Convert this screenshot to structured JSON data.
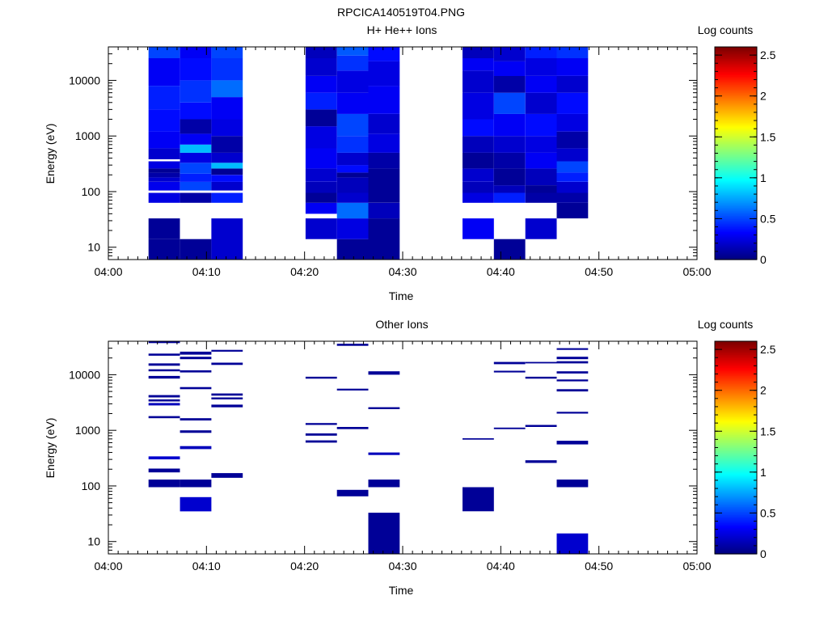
{
  "page": {
    "title": "RPCICA140519T04.PNG"
  },
  "colors": {
    "background": "#ffffff",
    "axis": "#000000",
    "colormap": [
      "#000080",
      "#0000ff",
      "#0080ff",
      "#00ffff",
      "#80ff80",
      "#ffff00",
      "#ff8000",
      "#ff0000",
      "#800000"
    ]
  },
  "chart_data": [
    {
      "type": "heatmap",
      "title": "H+ He++ Ions",
      "xlabel": "Time",
      "ylabel": "Energy (eV)",
      "yscale": "log",
      "xticks": [
        "04:00",
        "04:10",
        "04:20",
        "04:30",
        "04:40",
        "04:50",
        "05:00"
      ],
      "yticks": [
        "10",
        "100",
        "1000",
        "10000"
      ],
      "xlim_minutes": [
        0,
        60
      ],
      "ylim": [
        6,
        40000
      ],
      "colorbar": {
        "label": "Log counts",
        "range": [
          0,
          2.6
        ],
        "ticks": [
          "0",
          "0.5",
          "1",
          "1.5",
          "2",
          "2.5"
        ]
      },
      "columns": [
        {
          "t0": 4.1,
          "t1": 7.3,
          "cells": [
            [
              6,
              14,
              0.06
            ],
            [
              14,
              33,
              0.06
            ],
            [
              63,
              95,
              0.25
            ],
            [
              105,
              150,
              0.28
            ],
            [
              150,
              180,
              0.2
            ],
            [
              180,
              220,
              0.1
            ],
            [
              220,
              260,
              0.05
            ],
            [
              260,
              350,
              0.25
            ],
            [
              380,
              600,
              0.2
            ],
            [
              600,
              1200,
              0.3
            ],
            [
              1200,
              3000,
              0.35
            ],
            [
              3000,
              8000,
              0.4
            ],
            [
              8000,
              25000,
              0.3
            ],
            [
              25000,
              40000,
              0.5
            ]
          ]
        },
        {
          "t0": 7.3,
          "t1": 10.5,
          "cells": [
            [
              6,
              14,
              0.06
            ],
            [
              63,
              95,
              0.1
            ],
            [
              105,
              150,
              0.5
            ],
            [
              150,
              210,
              0.4
            ],
            [
              210,
              330,
              0.5
            ],
            [
              330,
              500,
              0.25
            ],
            [
              500,
              700,
              0.8
            ],
            [
              700,
              1100,
              0.3
            ],
            [
              1100,
              2000,
              0.1
            ],
            [
              2000,
              4000,
              0.35
            ],
            [
              4000,
              10000,
              0.45
            ],
            [
              10000,
              25000,
              0.35
            ],
            [
              25000,
              40000,
              0.3
            ]
          ]
        },
        {
          "t0": 10.5,
          "t1": 13.7,
          "cells": [
            [
              6,
              33,
              0.2
            ],
            [
              63,
              95,
              0.4
            ],
            [
              105,
              150,
              0.2
            ],
            [
              150,
              200,
              0.35
            ],
            [
              200,
              260,
              0.05
            ],
            [
              260,
              330,
              0.8
            ],
            [
              330,
              500,
              0.2
            ],
            [
              500,
              1000,
              0.1
            ],
            [
              1000,
              2000,
              0.25
            ],
            [
              2000,
              5000,
              0.3
            ],
            [
              5000,
              10000,
              0.6
            ],
            [
              10000,
              25000,
              0.45
            ],
            [
              25000,
              40000,
              0.5
            ]
          ]
        },
        {
          "t0": 20.1,
          "t1": 23.3,
          "cells": [
            [
              14,
              33,
              0.2
            ],
            [
              40,
              63,
              0.3
            ],
            [
              63,
              95,
              0.06
            ],
            [
              95,
              150,
              0.15
            ],
            [
              150,
              260,
              0.2
            ],
            [
              260,
              600,
              0.3
            ],
            [
              600,
              1500,
              0.25
            ],
            [
              1500,
              3000,
              0.06
            ],
            [
              3000,
              6000,
              0.4
            ],
            [
              6000,
              12000,
              0.3
            ],
            [
              12000,
              25000,
              0.2
            ],
            [
              25000,
              40000,
              0.15
            ]
          ]
        },
        {
          "t0": 23.3,
          "t1": 26.5,
          "cells": [
            [
              6,
              14,
              0.06
            ],
            [
              14,
              33,
              0.25
            ],
            [
              33,
              63,
              0.6
            ],
            [
              63,
              95,
              0.2
            ],
            [
              95,
              180,
              0.15
            ],
            [
              180,
              220,
              0.05
            ],
            [
              220,
              300,
              0.35
            ],
            [
              300,
              500,
              0.2
            ],
            [
              500,
              1000,
              0.45
            ],
            [
              1000,
              2500,
              0.5
            ],
            [
              2500,
              6000,
              0.3
            ],
            [
              6000,
              15000,
              0.25
            ],
            [
              15000,
              28000,
              0.45
            ],
            [
              28000,
              40000,
              0.55
            ]
          ]
        },
        {
          "t0": 26.5,
          "t1": 29.7,
          "cells": [
            [
              6,
              33,
              0.06
            ],
            [
              33,
              63,
              0.15
            ],
            [
              63,
              260,
              0.06
            ],
            [
              260,
              500,
              0.1
            ],
            [
              500,
              1100,
              0.25
            ],
            [
              1100,
              2500,
              0.2
            ],
            [
              2500,
              8000,
              0.3
            ],
            [
              8000,
              22000,
              0.25
            ],
            [
              22000,
              40000,
              0.35
            ]
          ]
        },
        {
          "t0": 36.1,
          "t1": 39.3,
          "cells": [
            [
              14,
              33,
              0.3
            ],
            [
              63,
              95,
              0.25
            ],
            [
              95,
              150,
              0.15
            ],
            [
              150,
              260,
              0.2
            ],
            [
              260,
              500,
              0.06
            ],
            [
              500,
              1000,
              0.15
            ],
            [
              1000,
              2000,
              0.35
            ],
            [
              2000,
              6000,
              0.25
            ],
            [
              6000,
              15000,
              0.2
            ],
            [
              15000,
              25000,
              0.3
            ],
            [
              25000,
              40000,
              0.15
            ]
          ]
        },
        {
          "t0": 39.3,
          "t1": 42.5,
          "cells": [
            [
              6,
              14,
              0.06
            ],
            [
              63,
              95,
              0.4
            ],
            [
              95,
              130,
              0.15
            ],
            [
              130,
              260,
              0.06
            ],
            [
              260,
              500,
              0.1
            ],
            [
              500,
              1000,
              0.2
            ],
            [
              1000,
              2500,
              0.3
            ],
            [
              2500,
              6000,
              0.5
            ],
            [
              6000,
              12000,
              0.1
            ],
            [
              12000,
              22000,
              0.3
            ],
            [
              22000,
              40000,
              0.2
            ]
          ]
        },
        {
          "t0": 42.5,
          "t1": 45.7,
          "cells": [
            [
              14,
              33,
              0.2
            ],
            [
              63,
              95,
              0.1
            ],
            [
              95,
              130,
              0.06
            ],
            [
              130,
              260,
              0.15
            ],
            [
              260,
              500,
              0.3
            ],
            [
              500,
              1000,
              0.25
            ],
            [
              1000,
              2500,
              0.35
            ],
            [
              2500,
              6000,
              0.2
            ],
            [
              6000,
              12000,
              0.3
            ],
            [
              12000,
              25000,
              0.25
            ],
            [
              25000,
              40000,
              0.4
            ]
          ]
        },
        {
          "t0": 45.7,
          "t1": 48.9,
          "cells": [
            [
              33,
              63,
              0.06
            ],
            [
              63,
              95,
              0.1
            ],
            [
              95,
              150,
              0.2
            ],
            [
              150,
              220,
              0.4
            ],
            [
              220,
              350,
              0.5
            ],
            [
              350,
              600,
              0.2
            ],
            [
              600,
              1200,
              0.1
            ],
            [
              1200,
              2500,
              0.25
            ],
            [
              2500,
              6000,
              0.35
            ],
            [
              6000,
              12000,
              0.2
            ],
            [
              12000,
              25000,
              0.3
            ],
            [
              25000,
              40000,
              0.45
            ]
          ]
        }
      ]
    },
    {
      "type": "heatmap",
      "title": "Other Ions",
      "xlabel": "Time",
      "ylabel": "Energy (eV)",
      "yscale": "log",
      "xticks": [
        "04:00",
        "04:10",
        "04:20",
        "04:30",
        "04:40",
        "04:50",
        "05:00"
      ],
      "yticks": [
        "10",
        "100",
        "1000",
        "10000"
      ],
      "xlim_minutes": [
        0,
        60
      ],
      "ylim": [
        6,
        40000
      ],
      "colorbar": {
        "label": "Log counts",
        "range": [
          0,
          2.6
        ],
        "ticks": [
          "0",
          "0.5",
          "1",
          "1.5",
          "2",
          "2.5"
        ]
      },
      "columns": [
        {
          "t0": 4.1,
          "t1": 7.3,
          "cells": [
            [
              95,
              130,
              0.06
            ],
            [
              175,
              205,
              0.06
            ],
            [
              300,
              340,
              0.2
            ],
            [
              1650,
              1800,
              0.06
            ],
            [
              2800,
              3100,
              0.15
            ],
            [
              3300,
              3600,
              0.06
            ],
            [
              3900,
              4300,
              0.06
            ],
            [
              8500,
              9500,
              0.06
            ],
            [
              11500,
              12500,
              0.06
            ],
            [
              14500,
              16000,
              0.06
            ],
            [
              22000,
              24000,
              0.06
            ],
            [
              37000,
              40000,
              0.06
            ]
          ]
        },
        {
          "t0": 7.3,
          "t1": 10.5,
          "cells": [
            [
              35,
              63,
              0.2
            ],
            [
              95,
              130,
              0.06
            ],
            [
              460,
              520,
              0.15
            ],
            [
              900,
              1000,
              0.06
            ],
            [
              1500,
              1650,
              0.06
            ],
            [
              5500,
              6000,
              0.06
            ],
            [
              11000,
              12000,
              0.06
            ],
            [
              19000,
              21000,
              0.06
            ],
            [
              23000,
              26000,
              0.06
            ]
          ]
        },
        {
          "t0": 10.5,
          "t1": 13.7,
          "cells": [
            [
              140,
              170,
              0.06
            ],
            [
              2600,
              2900,
              0.06
            ],
            [
              3600,
              3900,
              0.06
            ],
            [
              4200,
              4600,
              0.06
            ],
            [
              15000,
              16500,
              0.06
            ],
            [
              26000,
              28000,
              0.06
            ]
          ]
        },
        {
          "t0": 20.1,
          "t1": 23.3,
          "cells": [
            [
              600,
              660,
              0.06
            ],
            [
              800,
              880,
              0.06
            ],
            [
              1250,
              1350,
              0.06
            ],
            [
              8500,
              9200,
              0.06
            ]
          ]
        },
        {
          "t0": 23.3,
          "t1": 26.5,
          "cells": [
            [
              65,
              85,
              0.06
            ],
            [
              1050,
              1150,
              0.06
            ],
            [
              5200,
              5600,
              0.06
            ],
            [
              33000,
              36000,
              0.06
            ]
          ]
        },
        {
          "t0": 26.5,
          "t1": 29.7,
          "cells": [
            [
              6,
              33,
              0.06
            ],
            [
              95,
              130,
              0.06
            ],
            [
              360,
              400,
              0.15
            ],
            [
              2400,
              2600,
              0.06
            ],
            [
              10000,
              11500,
              0.06
            ]
          ]
        },
        {
          "t0": 36.1,
          "t1": 39.3,
          "cells": [
            [
              35,
              95,
              0.06
            ],
            [
              680,
              720,
              0.06
            ]
          ]
        },
        {
          "t0": 39.3,
          "t1": 42.5,
          "cells": [
            [
              1050,
              1120,
              0.06
            ],
            [
              11000,
              11800,
              0.06
            ],
            [
              15500,
              17000,
              0.06
            ]
          ]
        },
        {
          "t0": 42.5,
          "t1": 45.7,
          "cells": [
            [
              260,
              290,
              0.06
            ],
            [
              1150,
              1250,
              0.06
            ],
            [
              8500,
              9200,
              0.06
            ],
            [
              16000,
              17000,
              0.06
            ]
          ]
        },
        {
          "t0": 45.7,
          "t1": 48.9,
          "cells": [
            [
              6,
              14,
              0.2
            ],
            [
              95,
              130,
              0.06
            ],
            [
              560,
              650,
              0.06
            ],
            [
              2000,
              2150,
              0.06
            ],
            [
              5000,
              5500,
              0.06
            ],
            [
              7600,
              8200,
              0.06
            ],
            [
              10500,
              11500,
              0.06
            ],
            [
              16000,
              17500,
              0.06
            ],
            [
              19000,
              21000,
              0.06
            ],
            [
              28000,
              30000,
              0.06
            ]
          ]
        }
      ]
    }
  ]
}
